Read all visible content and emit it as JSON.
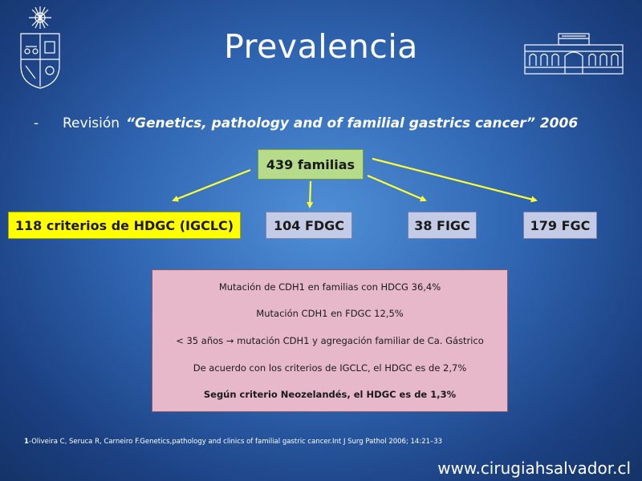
{
  "slide": {
    "title": "Prevalencia",
    "subtitle_dash": "-",
    "subtitle_prefix": "Revisión",
    "subtitle_paper": "“Genetics, pathology and of familial gastrics cancer” 2006"
  },
  "diagram": {
    "root": "439 familias",
    "children": [
      {
        "label": "118 criterios de HDGC (IGCLC)",
        "color": "#ffff00"
      },
      {
        "label": "104 FDGC",
        "color": "#c3cbe6"
      },
      {
        "label": "38 FIGC",
        "color": "#c3cbe6"
      },
      {
        "label": "179 FGC",
        "color": "#c3cbe6"
      }
    ],
    "arrow_color": "#ffff33",
    "root_color": "#b6db8a"
  },
  "findings": {
    "background": "#e7b8c9",
    "items": [
      "Mutación de CDH1 en familias con HDCG 36,4%",
      "Mutación CDH1 en FDGC 12,5%",
      "< 35 años → mutación CDH1 y agregación familiar de Ca. Gástrico",
      "De acuerdo con los criterios de IGCLC, el HDGC es de 2,7%",
      "Según criterio Neozelandés, el HDGC es de 1,3%"
    ]
  },
  "reference": {
    "number": "1",
    "text": "-Oliveira C, Seruca R, Carneiro F.Genetics,pathology and clinics of familial gastric cancer.Int J Surg Pathol 2006; 14:21–33"
  },
  "footer": {
    "website": "www.cirugiahsalvador.cl"
  },
  "logos": {
    "left": "university-crest-icon",
    "right": "hospital-building-icon"
  }
}
